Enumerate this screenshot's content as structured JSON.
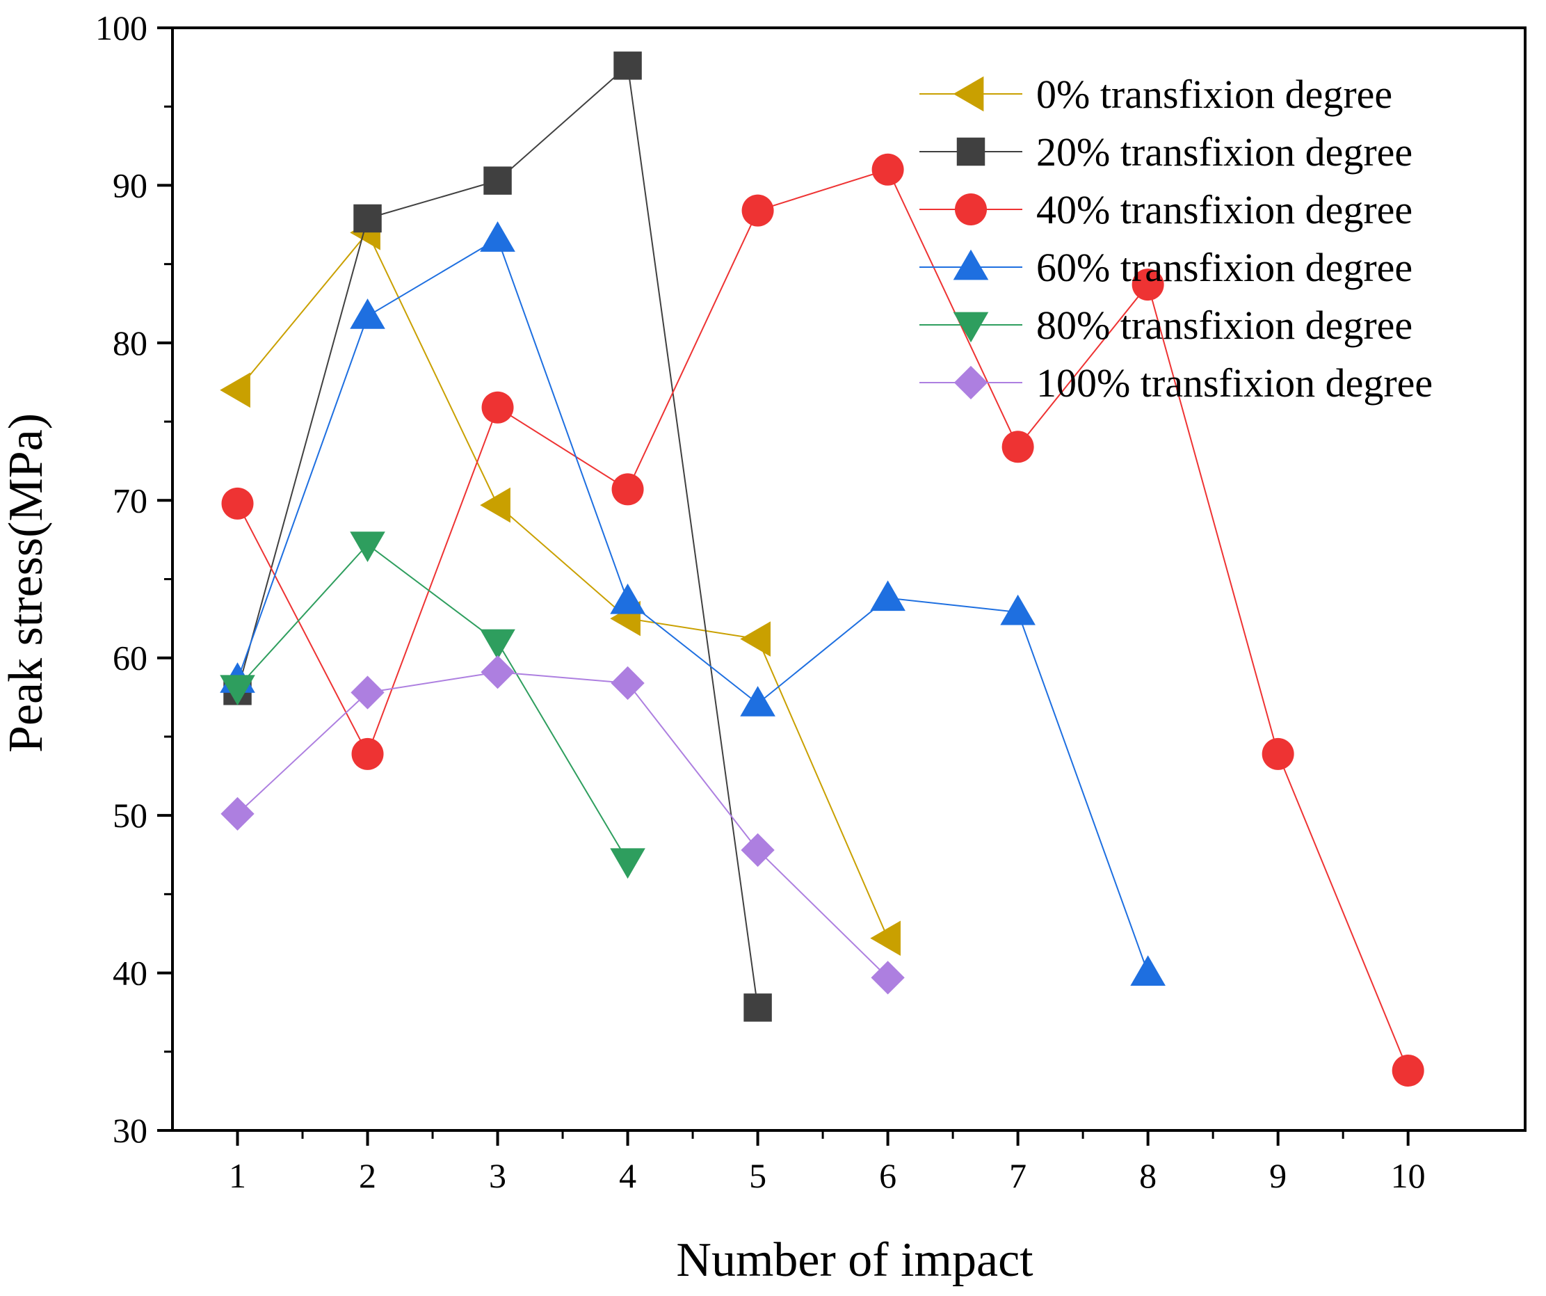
{
  "chart_data": {
    "type": "line",
    "xlabel": "Number of impact",
    "ylabel": "Peak stress(MPa)",
    "xlim": [
      0.5,
      10.9
    ],
    "ylim": [
      30,
      100
    ],
    "xticks": [
      1,
      2,
      3,
      4,
      5,
      6,
      7,
      8,
      9,
      10
    ],
    "yticks": [
      30,
      40,
      50,
      60,
      70,
      80,
      90,
      100
    ],
    "grid": false,
    "legend_position": "top-right",
    "series": [
      {
        "name": "0% transfixion degree",
        "marker": "triangle-left",
        "color": "#C9A000",
        "x": [
          1,
          2,
          3,
          4,
          5,
          6
        ],
        "y": [
          77.0,
          87.0,
          69.7,
          62.5,
          61.2,
          42.2
        ]
      },
      {
        "name": "20% transfixion degree",
        "marker": "square",
        "color": "#404040",
        "x": [
          1,
          2,
          3,
          4,
          5
        ],
        "y": [
          57.9,
          87.9,
          90.3,
          97.6,
          37.8
        ]
      },
      {
        "name": "40% transfixion degree",
        "marker": "circle",
        "color": "#EE3333",
        "x": [
          1,
          2,
          3,
          4,
          5,
          6,
          7,
          8,
          9,
          10
        ],
        "y": [
          69.8,
          53.9,
          75.9,
          70.7,
          88.4,
          91.0,
          73.4,
          83.7,
          53.9,
          33.8
        ]
      },
      {
        "name": "60% transfixion degree",
        "marker": "triangle-up",
        "color": "#1E6FE0",
        "x": [
          1,
          2,
          3,
          4,
          5,
          6,
          7,
          8
        ],
        "y": [
          58.6,
          81.7,
          86.6,
          63.6,
          57.1,
          63.8,
          62.9,
          40.0
        ]
      },
      {
        "name": "80% transfixion degree",
        "marker": "triangle-down",
        "color": "#2E9E5E",
        "x": [
          1,
          2,
          3,
          4
        ],
        "y": [
          58.1,
          67.2,
          61.0,
          47.1
        ]
      },
      {
        "name": "100% transfixion degree",
        "marker": "diamond",
        "color": "#AD7FE0",
        "x": [
          1,
          2,
          3,
          4,
          5,
          6
        ],
        "y": [
          50.1,
          57.8,
          59.1,
          58.4,
          47.8,
          39.7
        ]
      }
    ]
  }
}
